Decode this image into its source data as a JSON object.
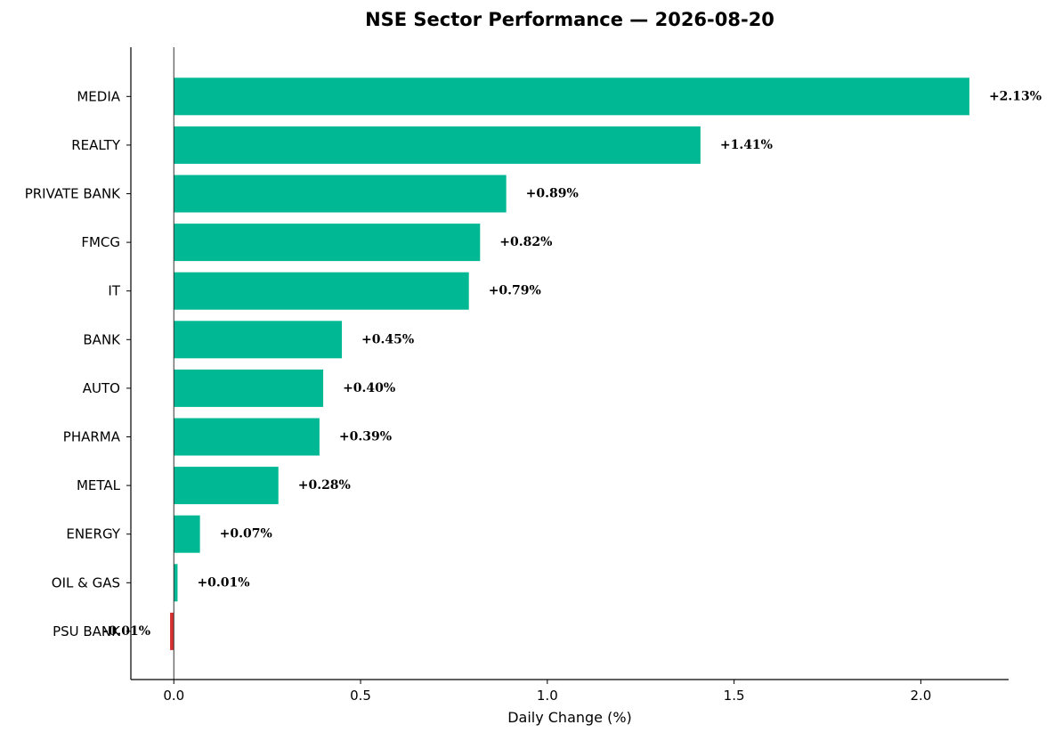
{
  "chart_data": {
    "type": "bar",
    "orientation": "horizontal",
    "title": "NSE Sector Performance — 2026-08-20",
    "xlabel": "Daily Change (%)",
    "ylabel": "",
    "categories": [
      "MEDIA",
      "REALTY",
      "PRIVATE BANK",
      "FMCG",
      "IT",
      "BANK",
      "AUTO",
      "PHARMA",
      "METAL",
      "ENERGY",
      "OIL & GAS",
      "PSU BANK"
    ],
    "values": [
      2.13,
      1.41,
      0.89,
      0.82,
      0.79,
      0.45,
      0.4,
      0.39,
      0.28,
      0.07,
      0.01,
      -0.01
    ],
    "value_labels": [
      "+2.13%",
      "+1.41%",
      "+0.89%",
      "+0.82%",
      "+0.79%",
      "+0.45%",
      "+0.40%",
      "+0.39%",
      "+0.28%",
      "+0.07%",
      "+0.01%",
      "-0.01%"
    ],
    "xlim": [
      -0.115,
      2.235
    ],
    "xticks": [
      0.0,
      0.5,
      1.0,
      1.5,
      2.0
    ],
    "xtick_labels": [
      "0.0",
      "0.5",
      "1.0",
      "1.5",
      "2.0"
    ],
    "grid": false,
    "legend": "none",
    "colors": {
      "positive": "#00b894",
      "negative": "#d63031",
      "zero_line": "#333333",
      "axis": "#000000"
    }
  }
}
